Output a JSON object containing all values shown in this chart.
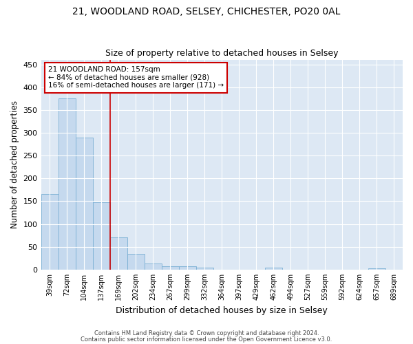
{
  "title1": "21, WOODLAND ROAD, SELSEY, CHICHESTER, PO20 0AL",
  "title2": "Size of property relative to detached houses in Selsey",
  "xlabel": "Distribution of detached houses by size in Selsey",
  "ylabel": "Number of detached properties",
  "footer1": "Contains HM Land Registry data © Crown copyright and database right 2024.",
  "footer2": "Contains public sector information licensed under the Open Government Licence v3.0.",
  "bar_labels": [
    "39sqm",
    "72sqm",
    "104sqm",
    "137sqm",
    "169sqm",
    "202sqm",
    "234sqm",
    "267sqm",
    "299sqm",
    "332sqm",
    "364sqm",
    "397sqm",
    "429sqm",
    "462sqm",
    "494sqm",
    "527sqm",
    "559sqm",
    "592sqm",
    "624sqm",
    "657sqm",
    "689sqm"
  ],
  "bar_values": [
    166,
    375,
    290,
    148,
    70,
    34,
    14,
    7,
    7,
    4,
    0,
    0,
    0,
    4,
    0,
    0,
    0,
    0,
    0,
    3,
    0
  ],
  "bar_color": "#c5d9ee",
  "bar_edgecolor": "#7aafd4",
  "background_color": "#dde8f4",
  "grid_color": "#ffffff",
  "vline_color": "#cc0000",
  "annotation_text": "21 WOODLAND ROAD: 157sqm\n← 84% of detached houses are smaller (928)\n16% of semi-detached houses are larger (171) →",
  "annotation_box_edgecolor": "#cc0000",
  "ylim": [
    0,
    460
  ],
  "yticks": [
    0,
    50,
    100,
    150,
    200,
    250,
    300,
    350,
    400,
    450
  ],
  "vline_bar_index": 3.5
}
